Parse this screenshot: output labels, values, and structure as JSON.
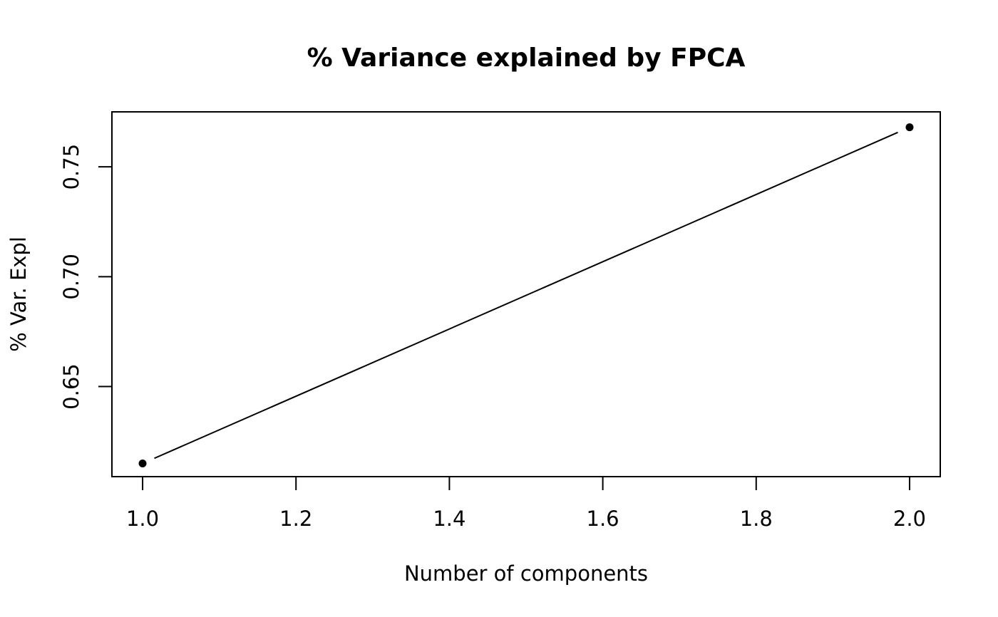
{
  "chart_data": {
    "type": "line",
    "title": "% Variance explained by FPCA",
    "xlabel": "Number of components",
    "ylabel": "% Var. Expl",
    "x": [
      1,
      2
    ],
    "series": [
      {
        "values": [
          0.615,
          0.768
        ],
        "markers": "filled-circle",
        "line_style": "solid"
      }
    ],
    "xlim": [
      0.96,
      2.04
    ],
    "ylim": [
      0.609,
      0.775
    ],
    "x_ticks": [
      1.0,
      1.2,
      1.4,
      1.6,
      1.8,
      2.0
    ],
    "x_tick_labels": [
      "1.0",
      "1.2",
      "1.4",
      "1.6",
      "1.8",
      "2.0"
    ],
    "y_ticks": [
      0.65,
      0.7,
      0.75
    ],
    "y_tick_labels": [
      "0.65",
      "0.70",
      "0.75"
    ],
    "grid": false,
    "legend": "none",
    "colors": {
      "line": "#000000",
      "points": "#000000",
      "frame": "#000000"
    }
  }
}
